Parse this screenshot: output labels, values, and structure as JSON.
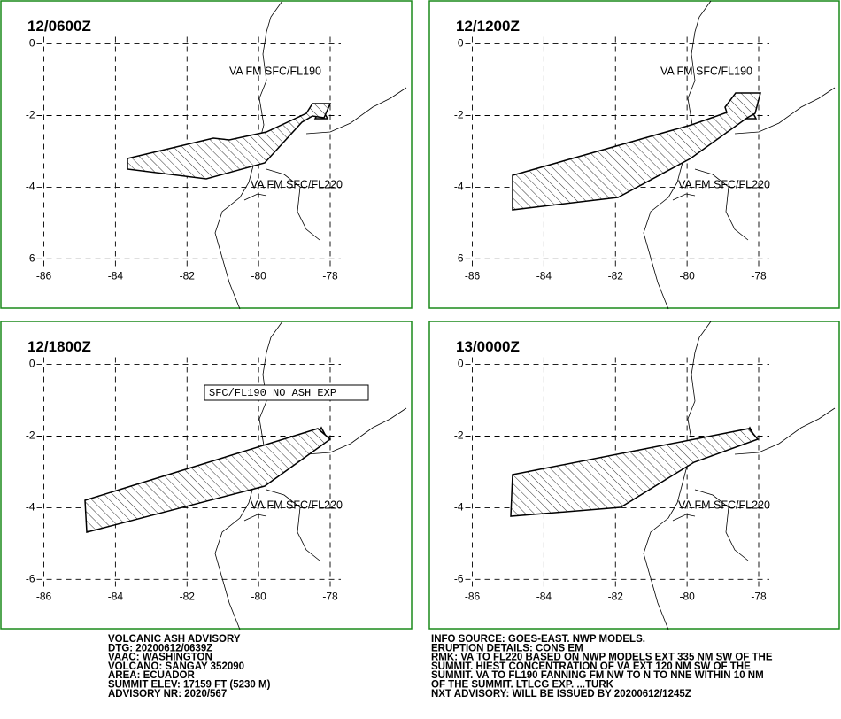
{
  "map": {
    "xlim": [
      -87.2,
      -75.7
    ],
    "ylim": [
      1.2,
      -7.4
    ],
    "xticks": [
      -86,
      -84,
      -82,
      -80,
      -78
    ],
    "yticks": [
      0,
      -2,
      -4,
      -6
    ]
  },
  "panels": [
    {
      "time": "12/0600Z",
      "annotations": [
        "VA FM SFC/FL190",
        "VA FM SFC/FL220"
      ]
    },
    {
      "time": "12/1200Z",
      "annotations": [
        "VA FM SFC/FL190",
        "VA FM SFC/FL220"
      ]
    },
    {
      "time": "12/1800Z",
      "annotations": [
        "SFC/FL190 NO ASH EXP",
        "VA FM SFC/FL220"
      ]
    },
    {
      "time": "13/0000Z",
      "annotations": [
        "VA FM SFC/FL220"
      ]
    }
  ],
  "footer": {
    "left": [
      "VOLCANIC ASH ADVISORY",
      "DTG: 20200612/0639Z",
      "VAAC: WASHINGTON",
      "VOLCANO: SANGAY 352090",
      "AREA: ECUADOR",
      "SUMMIT ELEV: 17159 FT (5230 M)",
      "ADVISORY NR: 2020/567"
    ],
    "right": [
      "INFO SOURCE: GOES-EAST. NWP MODELS.",
      "ERUPTION DETAILS: CONS EM",
      "RMK: VA TO FL220 BASED ON NWP MODELS EXT 335 NM SW OF THE",
      "SUMMIT. HIEST CONCENTRATION OF VA EXT 120 NM SW OF THE",
      "SUMMIT. VA TO FL190 FANNING FM NW TO N TO NNE WITHIN 10 NM",
      "OF THE SUMMIT. LTLCG EXP. ...TURK",
      "NXT ADVISORY: WILL BE ISSUED BY 20200612/1245Z"
    ]
  }
}
